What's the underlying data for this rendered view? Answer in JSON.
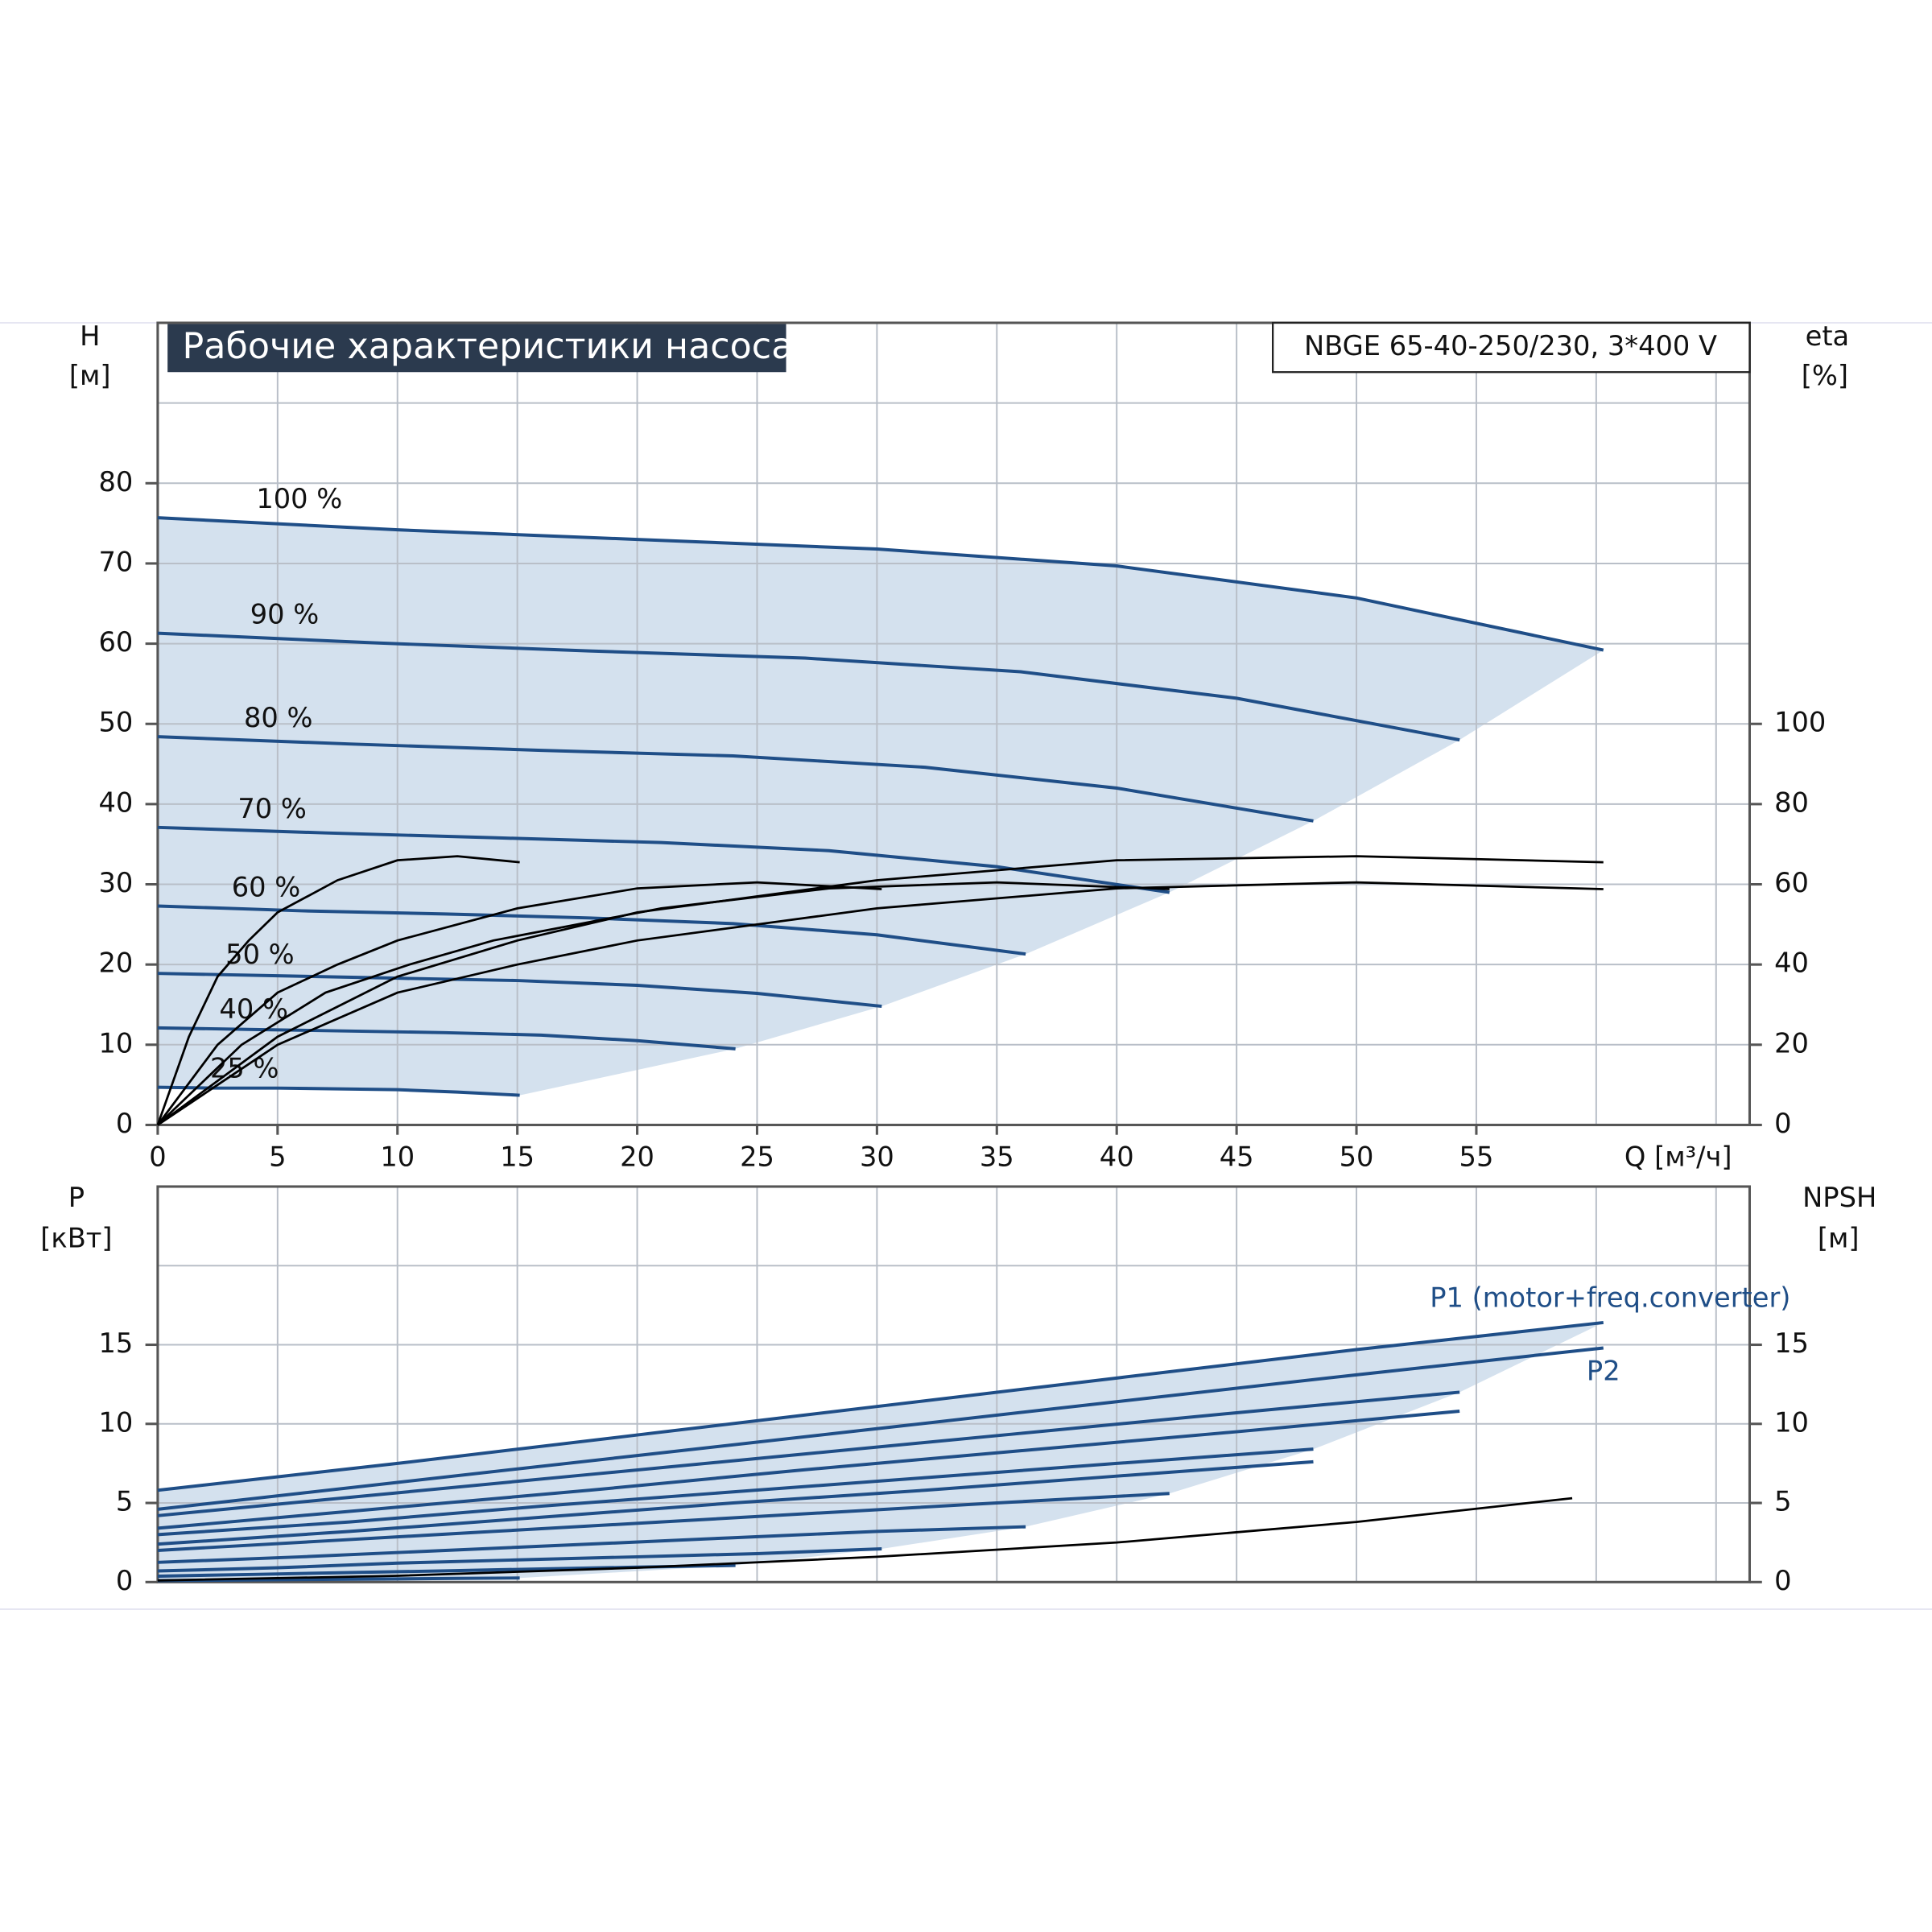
{
  "chart_data": [
    {
      "type": "line",
      "title": "Рабочие характеристики насоса",
      "subtitle": "NBGE 65-40-250/230, 3*400 V",
      "x_label": "Q [м³/ч]",
      "y_label": {
        "name": "H",
        "unit": "[м]"
      },
      "y2_label": {
        "name": "eta",
        "unit": "[%]"
      },
      "xlim": [
        0,
        66.4
      ],
      "xticks": [
        0,
        5,
        10,
        15,
        20,
        25,
        30,
        35,
        40,
        45,
        50,
        55
      ],
      "xgrid": [
        5,
        10,
        15,
        20,
        25,
        30,
        35,
        40,
        45,
        50,
        55,
        60,
        65
      ],
      "ylim": [
        0,
        100
      ],
      "yticks": [
        0,
        10,
        20,
        30,
        40,
        50,
        60,
        70,
        80
      ],
      "ygrid": [
        10,
        20,
        30,
        40,
        50,
        60,
        70,
        80,
        90
      ],
      "y2lim": [
        0,
        200
      ],
      "y2ticks": [
        0,
        20,
        40,
        60,
        80,
        100
      ],
      "grid": true,
      "series": [
        {
          "name": "100 %",
          "color": "#1f4e87",
          "x": [
            0,
            10,
            20,
            30,
            40,
            50,
            60.3
          ],
          "values": [
            75.7,
            74.2,
            73.0,
            71.8,
            69.7,
            65.7,
            59.2
          ]
        },
        {
          "name": "90 %",
          "color": "#1f4e87",
          "x": [
            0,
            9,
            18,
            27,
            36,
            45,
            54.3
          ],
          "values": [
            61.3,
            60.1,
            59.1,
            58.2,
            56.5,
            53.2,
            48.0
          ]
        },
        {
          "name": "80 %",
          "color": "#1f4e87",
          "x": [
            0,
            8,
            16,
            24,
            32,
            40,
            48.2
          ],
          "values": [
            48.4,
            47.5,
            46.7,
            46.0,
            44.6,
            42.0,
            37.9
          ]
        },
        {
          "name": "70 %",
          "color": "#1f4e87",
          "x": [
            0,
            7,
            14,
            21,
            28,
            35,
            42.2
          ],
          "values": [
            37.1,
            36.4,
            35.8,
            35.2,
            34.2,
            32.2,
            29.0
          ]
        },
        {
          "name": "60 %",
          "color": "#1f4e87",
          "x": [
            0,
            6,
            12,
            18,
            24,
            30,
            36.2
          ],
          "values": [
            27.3,
            26.7,
            26.3,
            25.8,
            25.1,
            23.7,
            21.3
          ]
        },
        {
          "name": "50 %",
          "color": "#1f4e87",
          "x": [
            0,
            5,
            10,
            15,
            20,
            25,
            30.2
          ],
          "values": [
            18.9,
            18.6,
            18.3,
            18.0,
            17.4,
            16.4,
            14.8
          ]
        },
        {
          "name": "40 %",
          "color": "#1f4e87",
          "x": [
            0,
            4,
            8,
            12,
            16,
            20,
            24.1
          ],
          "values": [
            12.1,
            11.9,
            11.7,
            11.5,
            11.2,
            10.5,
            9.5
          ]
        },
        {
          "name": "25 %",
          "color": "#1f4e87",
          "x": [
            0,
            2.5,
            5,
            7.5,
            10,
            12.5,
            15.1
          ],
          "values": [
            4.7,
            4.6,
            4.6,
            4.5,
            4.4,
            4.1,
            3.7
          ]
        },
        {
          "color": "#000000",
          "axis": "y2",
          "x": [
            0,
            5,
            10,
            15,
            20,
            30,
            40,
            50,
            60.3
          ],
          "values": [
            0,
            20,
            33,
            40,
            46,
            54,
            59,
            60.5,
            58.8
          ]
        },
        {
          "color": "#000000",
          "axis": "y2",
          "x": [
            0,
            5,
            10,
            15,
            20,
            30,
            40,
            50,
            60.3
          ],
          "values": [
            0,
            22,
            37,
            46,
            53,
            61,
            66,
            67,
            65.5
          ]
        },
        {
          "color": "#000000",
          "axis": "y2",
          "x": [
            0,
            3.5,
            7,
            10.5,
            14,
            21,
            28,
            35,
            42.2
          ],
          "values": [
            0,
            20,
            33,
            40,
            46,
            54,
            59,
            60.5,
            58.8
          ]
        },
        {
          "color": "#000000",
          "axis": "y2",
          "x": [
            0,
            2.5,
            5,
            7.5,
            10,
            15,
            20,
            25,
            30.2
          ],
          "values": [
            0,
            20,
            33,
            40,
            46,
            54,
            59,
            60.5,
            58.8
          ]
        },
        {
          "color": "#000000",
          "axis": "y2",
          "x": [
            0,
            1.3,
            2.5,
            3.8,
            5,
            7.5,
            10,
            12.5,
            15.1
          ],
          "values": [
            0,
            22,
            37,
            46,
            53,
            61,
            66,
            67,
            65.5
          ]
        }
      ]
    },
    {
      "type": "line",
      "y_label": {
        "name": "P",
        "unit": "[кВт]"
      },
      "y2_label": {
        "name": "NPSH",
        "unit": "[м]"
      },
      "xlim": [
        0,
        66.4
      ],
      "xgrid": [
        5,
        10,
        15,
        20,
        25,
        30,
        35,
        40,
        45,
        50,
        55,
        60,
        65
      ],
      "ylim": [
        0,
        25
      ],
      "yticks": [
        0,
        5,
        10,
        15
      ],
      "ygrid": [
        5,
        10,
        15,
        20
      ],
      "y2lim": [
        0,
        25
      ],
      "y2ticks": [
        0,
        5,
        10,
        15
      ],
      "grid": true,
      "series": [
        {
          "name": "P1 (motor+freq.converter)",
          "color": "#1f4e87",
          "x": [
            0,
            10,
            20,
            30,
            40,
            50,
            60.3
          ],
          "values": [
            5.8,
            7.5,
            9.3,
            11.1,
            12.9,
            14.7,
            16.4
          ]
        },
        {
          "color": "#1f4e87",
          "x": [
            0,
            9,
            18,
            27,
            36,
            45,
            54.3
          ],
          "values": [
            4.2,
            5.5,
            6.8,
            8.1,
            9.4,
            10.7,
            12.0
          ]
        },
        {
          "color": "#1f4e87",
          "x": [
            0,
            8,
            16,
            24,
            32,
            40,
            48.2
          ],
          "values": [
            3.0,
            3.8,
            4.8,
            5.7,
            6.6,
            7.5,
            8.4
          ]
        },
        {
          "color": "#1f4e87",
          "x": [
            0,
            7,
            14,
            21,
            28,
            35,
            42.2
          ],
          "values": [
            2.0,
            2.6,
            3.2,
            3.8,
            4.4,
            5.0,
            5.6
          ]
        },
        {
          "color": "#1f4e87",
          "x": [
            0,
            6,
            12,
            18,
            24,
            30,
            36.2
          ],
          "values": [
            1.25,
            1.6,
            2.0,
            2.4,
            2.8,
            3.2,
            3.5
          ]
        },
        {
          "color": "#1f4e87",
          "x": [
            0,
            5,
            10,
            15,
            20,
            25,
            30.2
          ],
          "values": [
            0.7,
            0.9,
            1.2,
            1.4,
            1.6,
            1.8,
            2.1
          ]
        },
        {
          "color": "#1f4e87",
          "x": [
            0,
            4,
            8,
            12,
            16,
            20,
            24.1
          ],
          "values": [
            0.37,
            0.48,
            0.6,
            0.71,
            0.83,
            0.94,
            1.05
          ]
        },
        {
          "color": "#1f4e87",
          "x": [
            0,
            2.5,
            5,
            7.5,
            10,
            12.5,
            15.1
          ],
          "values": [
            0.09,
            0.12,
            0.15,
            0.17,
            0.2,
            0.23,
            0.26
          ]
        },
        {
          "name": "P2",
          "color": "#1f4e87",
          "x": [
            0,
            10,
            20,
            30,
            40,
            50,
            60.3
          ],
          "values": [
            4.6,
            6.3,
            8.0,
            9.7,
            11.4,
            13.1,
            14.8
          ]
        },
        {
          "color": "#1f4e87",
          "x": [
            0,
            9,
            18,
            27,
            36,
            45,
            54.3
          ],
          "values": [
            3.4,
            4.6,
            5.8,
            7.1,
            8.3,
            9.5,
            10.8
          ]
        },
        {
          "color": "#1f4e87",
          "x": [
            0,
            8,
            16,
            24,
            32,
            40,
            48.2
          ],
          "values": [
            2.4,
            3.2,
            4.1,
            5.0,
            5.8,
            6.7,
            7.6
          ]
        },
        {
          "color": "#000000",
          "axis": "y2",
          "x": [
            0,
            10,
            20,
            30,
            40,
            50,
            59
          ],
          "values": [
            0.1,
            0.4,
            0.9,
            1.6,
            2.5,
            3.8,
            5.3
          ]
        }
      ]
    }
  ]
}
